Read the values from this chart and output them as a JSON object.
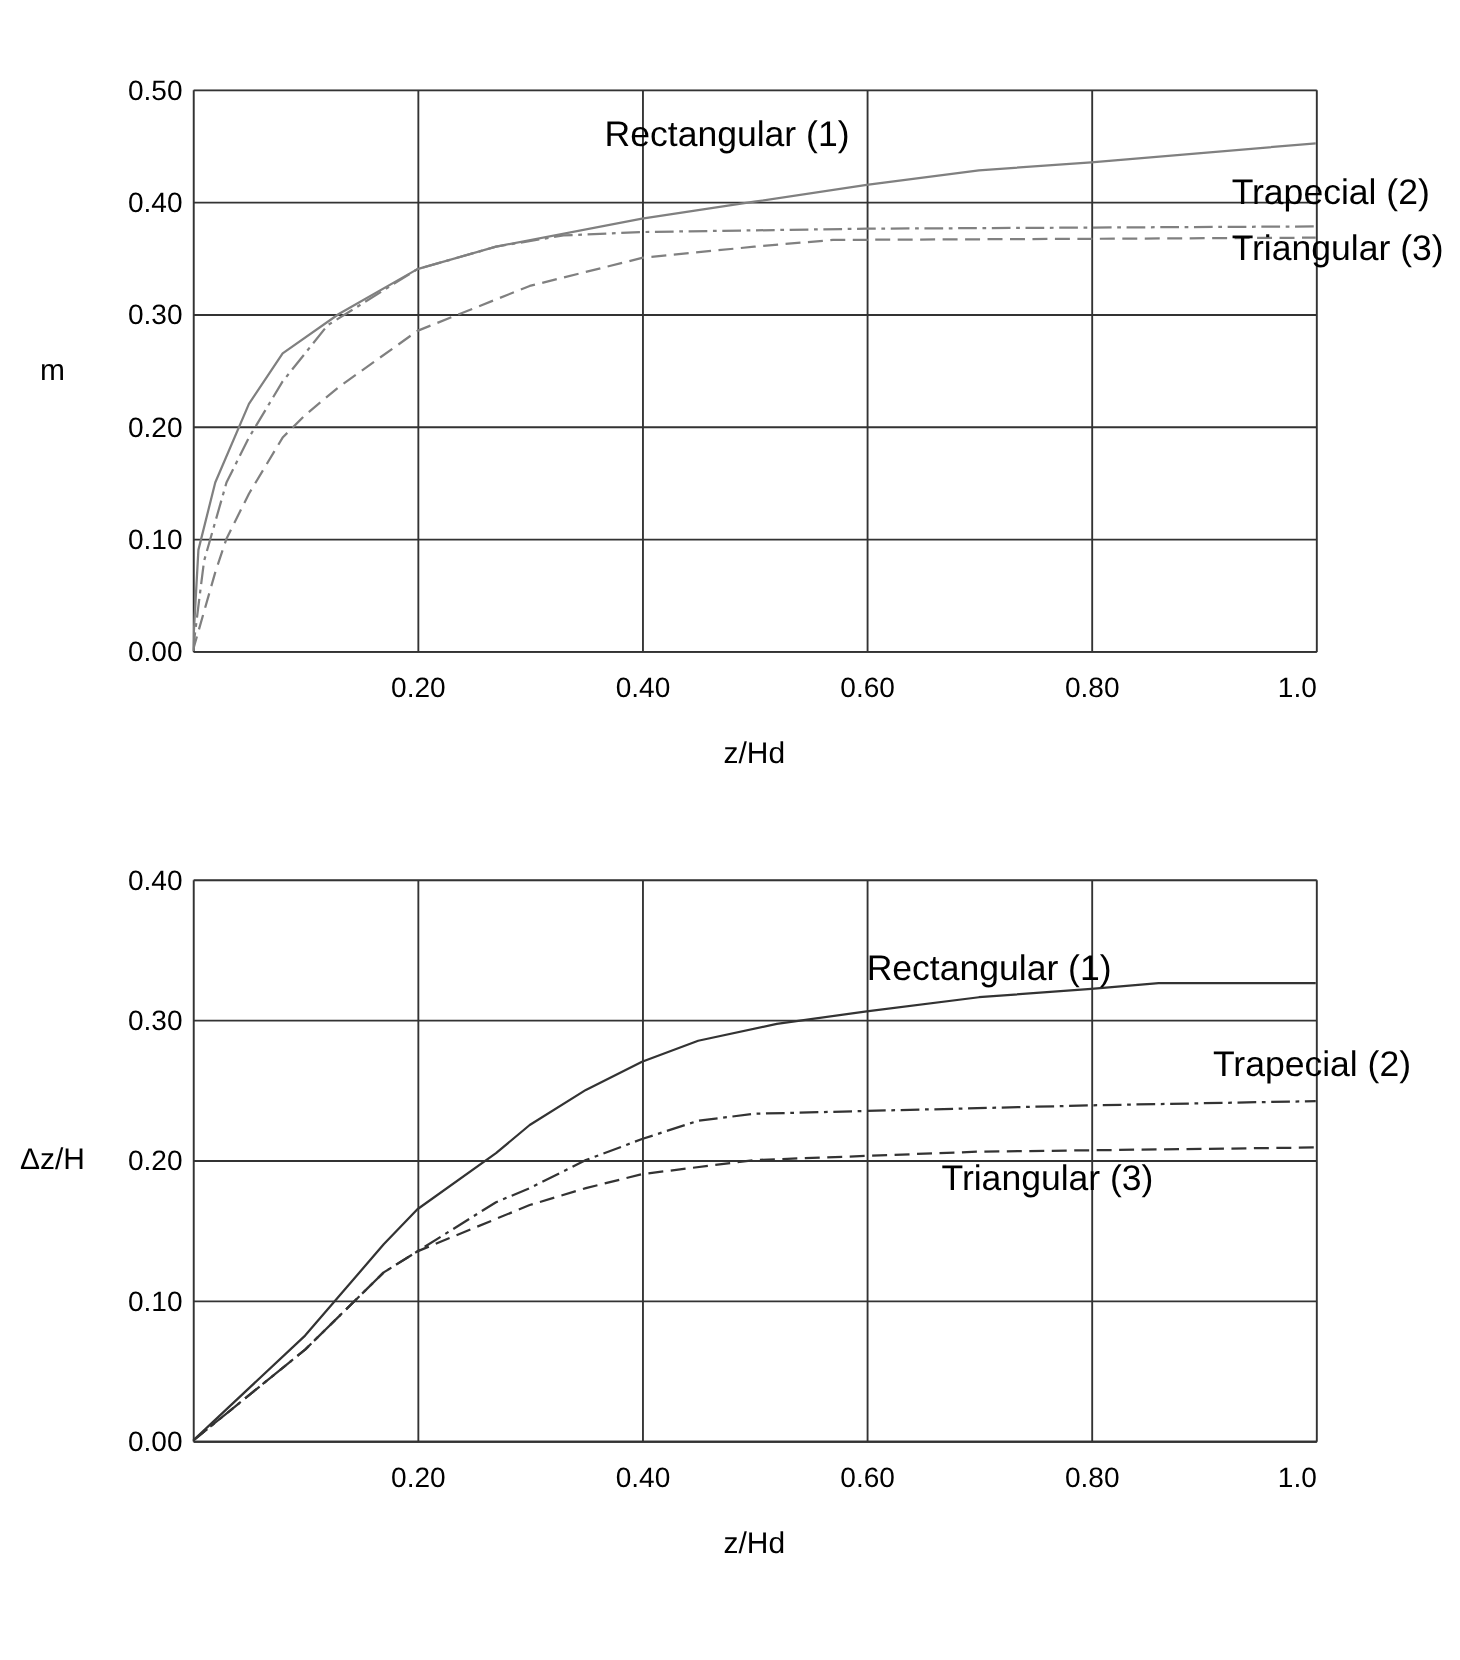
{
  "chart_data": [
    {
      "type": "line",
      "xlabel": "z/Hd",
      "ylabel": "m",
      "xlim": [
        0,
        1.0
      ],
      "ylim": [
        0,
        0.5
      ],
      "xticks": [
        {
          "value": 0.2,
          "label": "0.20"
        },
        {
          "value": 0.4,
          "label": "0.40"
        },
        {
          "value": 0.6,
          "label": "0.60"
        },
        {
          "value": 0.8,
          "label": "0.80"
        },
        {
          "value": 1.0,
          "label": "1.0"
        }
      ],
      "yticks": [
        {
          "value": 0,
          "label": "0.00"
        },
        {
          "value": 0.1,
          "label": "0.10"
        },
        {
          "value": 0.2,
          "label": "0.20"
        },
        {
          "value": 0.3,
          "label": "0.30"
        },
        {
          "value": 0.4,
          "label": "0.40"
        },
        {
          "value": 0.5,
          "label": "0.50"
        }
      ],
      "grid": true,
      "series": [
        {
          "color": "#808080",
          "line_style": "solid",
          "x": [
            0,
            0.005,
            0.02,
            0.05,
            0.08,
            0.13,
            0.2,
            0.27,
            0.4,
            0.5,
            0.6,
            0.7,
            0.8,
            1.0
          ],
          "values": [
            0,
            0.09,
            0.15,
            0.22,
            0.265,
            0.3,
            0.34,
            0.36,
            0.385,
            0.4,
            0.415,
            0.428,
            0.435,
            0.452
          ]
        },
        {
          "color": "#808080",
          "line_style": "dashdot",
          "x": [
            0,
            0.01,
            0.03,
            0.05,
            0.08,
            0.12,
            0.2,
            0.27,
            0.33,
            0.4,
            0.6,
            0.8,
            1.0
          ],
          "values": [
            0,
            0.08,
            0.15,
            0.19,
            0.24,
            0.29,
            0.34,
            0.36,
            0.37,
            0.373,
            0.376,
            0.377,
            0.378
          ]
        },
        {
          "color": "#808080",
          "line_style": "dashed",
          "x": [
            0,
            0.02,
            0.03,
            0.05,
            0.08,
            0.1,
            0.13,
            0.2,
            0.3,
            0.4,
            0.5,
            0.57,
            0.8,
            1.0
          ],
          "values": [
            0,
            0.07,
            0.1,
            0.14,
            0.19,
            0.21,
            0.235,
            0.285,
            0.325,
            0.35,
            0.36,
            0.366,
            0.367,
            0.368
          ]
        }
      ],
      "annotations": [
        "Rectangular (1)",
        "Trapecial (2)",
        "Triangular (3)"
      ]
    },
    {
      "type": "line",
      "xlabel": "z/Hd",
      "ylabel": "Δz/H",
      "xlim": [
        0,
        1.0
      ],
      "ylim": [
        0,
        0.4
      ],
      "xticks": [
        {
          "value": 0.2,
          "label": "0.20"
        },
        {
          "value": 0.4,
          "label": "0.40"
        },
        {
          "value": 0.6,
          "label": "0.60"
        },
        {
          "value": 0.8,
          "label": "0.80"
        },
        {
          "value": 1.0,
          "label": "1.0"
        }
      ],
      "yticks": [
        {
          "value": 0,
          "label": "0.00"
        },
        {
          "value": 0.1,
          "label": "0.10"
        },
        {
          "value": 0.2,
          "label": "0.20"
        },
        {
          "value": 0.3,
          "label": "0.30"
        },
        {
          "value": 0.4,
          "label": "0.40"
        }
      ],
      "grid": true,
      "series": [
        {
          "color": "#333333",
          "line_style": "solid",
          "x": [
            0,
            0.1,
            0.17,
            0.2,
            0.27,
            0.3,
            0.35,
            0.4,
            0.45,
            0.52,
            0.6,
            0.7,
            0.8,
            0.86,
            1.0
          ],
          "values": [
            0,
            0.075,
            0.14,
            0.165,
            0.205,
            0.225,
            0.25,
            0.27,
            0.285,
            0.297,
            0.306,
            0.316,
            0.322,
            0.326,
            0.326
          ]
        },
        {
          "color": "#333333",
          "line_style": "dashdot",
          "x": [
            0,
            0.1,
            0.17,
            0.2,
            0.27,
            0.3,
            0.35,
            0.4,
            0.45,
            0.5,
            0.6,
            0.8,
            1.0
          ],
          "values": [
            0,
            0.065,
            0.12,
            0.135,
            0.17,
            0.18,
            0.2,
            0.215,
            0.228,
            0.233,
            0.235,
            0.239,
            0.242
          ]
        },
        {
          "color": "#333333",
          "line_style": "dashed",
          "x": [
            0,
            0.1,
            0.17,
            0.2,
            0.3,
            0.35,
            0.4,
            0.5,
            0.6,
            0.7,
            0.8,
            1.0
          ],
          "values": [
            0,
            0.065,
            0.12,
            0.135,
            0.168,
            0.18,
            0.19,
            0.2,
            0.203,
            0.206,
            0.207,
            0.209
          ]
        }
      ],
      "annotations": [
        "Rectangular (1)",
        "Trapecial (2)",
        "Triangular (3)"
      ]
    }
  ]
}
